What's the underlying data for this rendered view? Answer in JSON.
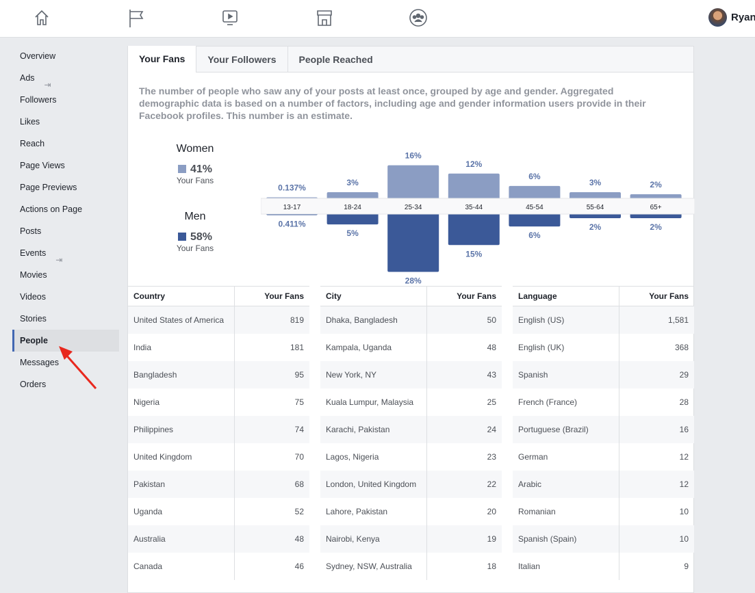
{
  "topnav": {
    "icons": [
      "home-icon",
      "flag-icon",
      "video-icon",
      "shop-icon",
      "groups-icon"
    ],
    "user_name": "Ryan"
  },
  "sidebar": {
    "items": [
      {
        "label": "Overview"
      },
      {
        "label": "Ads",
        "external": true
      },
      {
        "label": "Followers"
      },
      {
        "label": "Likes"
      },
      {
        "label": "Reach"
      },
      {
        "label": "Page Views"
      },
      {
        "label": "Page Previews"
      },
      {
        "label": "Actions on Page"
      },
      {
        "label": "Posts"
      },
      {
        "label": "Events",
        "external": true
      },
      {
        "label": "Movies"
      },
      {
        "label": "Videos"
      },
      {
        "label": "Stories"
      },
      {
        "label": "People",
        "active": true
      },
      {
        "label": "Messages"
      },
      {
        "label": "Orders"
      }
    ]
  },
  "tabs": [
    "Your Fans",
    "Your Followers",
    "People Reached"
  ],
  "description": "The number of people who saw any of your posts at least once, grouped by age and gender. Aggregated demographic data is based on a number of factors, including age and gender information users provide in their Facebook profiles. This number is an estimate.",
  "legend": {
    "women": {
      "title": "Women",
      "value": "41%",
      "sub": "Your Fans",
      "color": "#8b9dc3"
    },
    "men": {
      "title": "Men",
      "value": "58%",
      "sub": "Your Fans",
      "color": "#3b5998"
    }
  },
  "chart_data": {
    "type": "bar",
    "categories": [
      "13-17",
      "18-24",
      "25-34",
      "35-44",
      "45-54",
      "55-64",
      "65+"
    ],
    "series": [
      {
        "name": "Women",
        "values": [
          0.137,
          3,
          16,
          12,
          6,
          3,
          2
        ],
        "labels": [
          "0.137%",
          "3%",
          "16%",
          "12%",
          "6%",
          "3%",
          "2%"
        ],
        "color": "#8b9dc3"
      },
      {
        "name": "Men",
        "values": [
          0.411,
          5,
          28,
          15,
          6,
          2,
          2
        ],
        "labels": [
          "0.411%",
          "5%",
          "28%",
          "15%",
          "6%",
          "2%",
          "2%"
        ],
        "color": "#3b5998"
      }
    ]
  },
  "tables": [
    {
      "headers": [
        "Country",
        "Your Fans"
      ],
      "rows": [
        [
          "United States of America",
          "819"
        ],
        [
          "India",
          "181"
        ],
        [
          "Bangladesh",
          "95"
        ],
        [
          "Nigeria",
          "75"
        ],
        [
          "Philippines",
          "74"
        ],
        [
          "United Kingdom",
          "70"
        ],
        [
          "Pakistan",
          "68"
        ],
        [
          "Uganda",
          "52"
        ],
        [
          "Australia",
          "48"
        ],
        [
          "Canada",
          "46"
        ]
      ]
    },
    {
      "headers": [
        "City",
        "Your Fans"
      ],
      "rows": [
        [
          "Dhaka, Bangladesh",
          "50"
        ],
        [
          "Kampala, Uganda",
          "48"
        ],
        [
          "New York, NY",
          "43"
        ],
        [
          "Kuala Lumpur, Malaysia",
          "25"
        ],
        [
          "Karachi, Pakistan",
          "24"
        ],
        [
          "Lagos, Nigeria",
          "23"
        ],
        [
          "London, United Kingdom",
          "22"
        ],
        [
          "Lahore, Pakistan",
          "20"
        ],
        [
          "Nairobi, Kenya",
          "19"
        ],
        [
          "Sydney, NSW, Australia",
          "18"
        ]
      ]
    },
    {
      "headers": [
        "Language",
        "Your Fans"
      ],
      "rows": [
        [
          "English (US)",
          "1,581"
        ],
        [
          "English (UK)",
          "368"
        ],
        [
          "Spanish",
          "29"
        ],
        [
          "French (France)",
          "28"
        ],
        [
          "Portuguese (Brazil)",
          "16"
        ],
        [
          "German",
          "12"
        ],
        [
          "Arabic",
          "12"
        ],
        [
          "Romanian",
          "10"
        ],
        [
          "Spanish (Spain)",
          "10"
        ],
        [
          "Italian",
          "9"
        ]
      ]
    }
  ]
}
